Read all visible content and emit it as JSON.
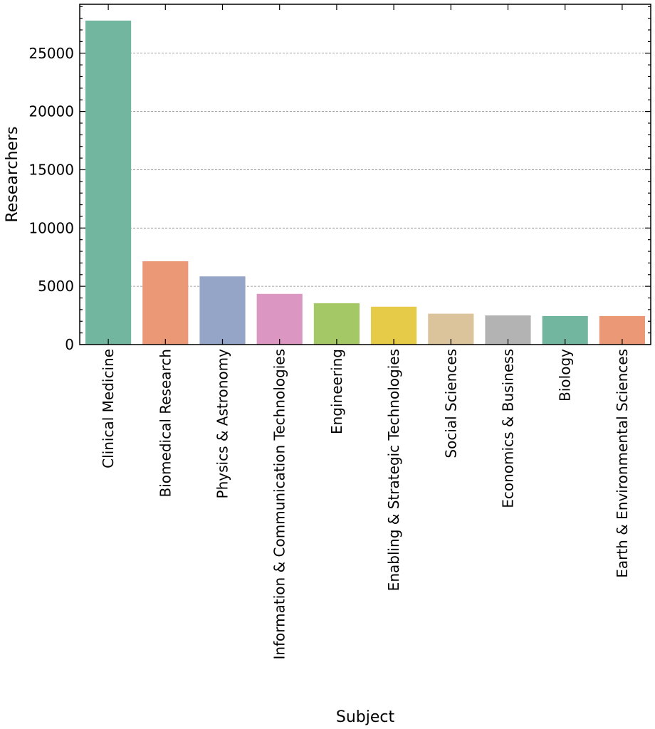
{
  "chart_data": {
    "type": "bar",
    "title": "",
    "xlabel": "Subject",
    "ylabel": "Researchers",
    "ylim": [
      0,
      29200
    ],
    "yticks": [
      0,
      5000,
      10000,
      15000,
      20000,
      25000
    ],
    "grid": "horizontal-dashed",
    "categories": [
      "Clinical Medicine",
      "Biomedical Research",
      "Physics & Astronomy",
      "Information & Communication Technologies",
      "Engineering",
      "Enabling & Strategic Technologies",
      "Social Sciences",
      "Economics & Business",
      "Biology",
      "Earth & Environmental Sciences"
    ],
    "values": [
      27800,
      7150,
      5850,
      4350,
      3550,
      3250,
      2650,
      2500,
      2450,
      2450
    ],
    "colors": [
      "#72b6a0",
      "#ea9875",
      "#95a5c7",
      "#db96c2",
      "#a3c865",
      "#e6cb48",
      "#dbc39c",
      "#b3b3b3",
      "#72b6a0",
      "#ea9875"
    ]
  }
}
